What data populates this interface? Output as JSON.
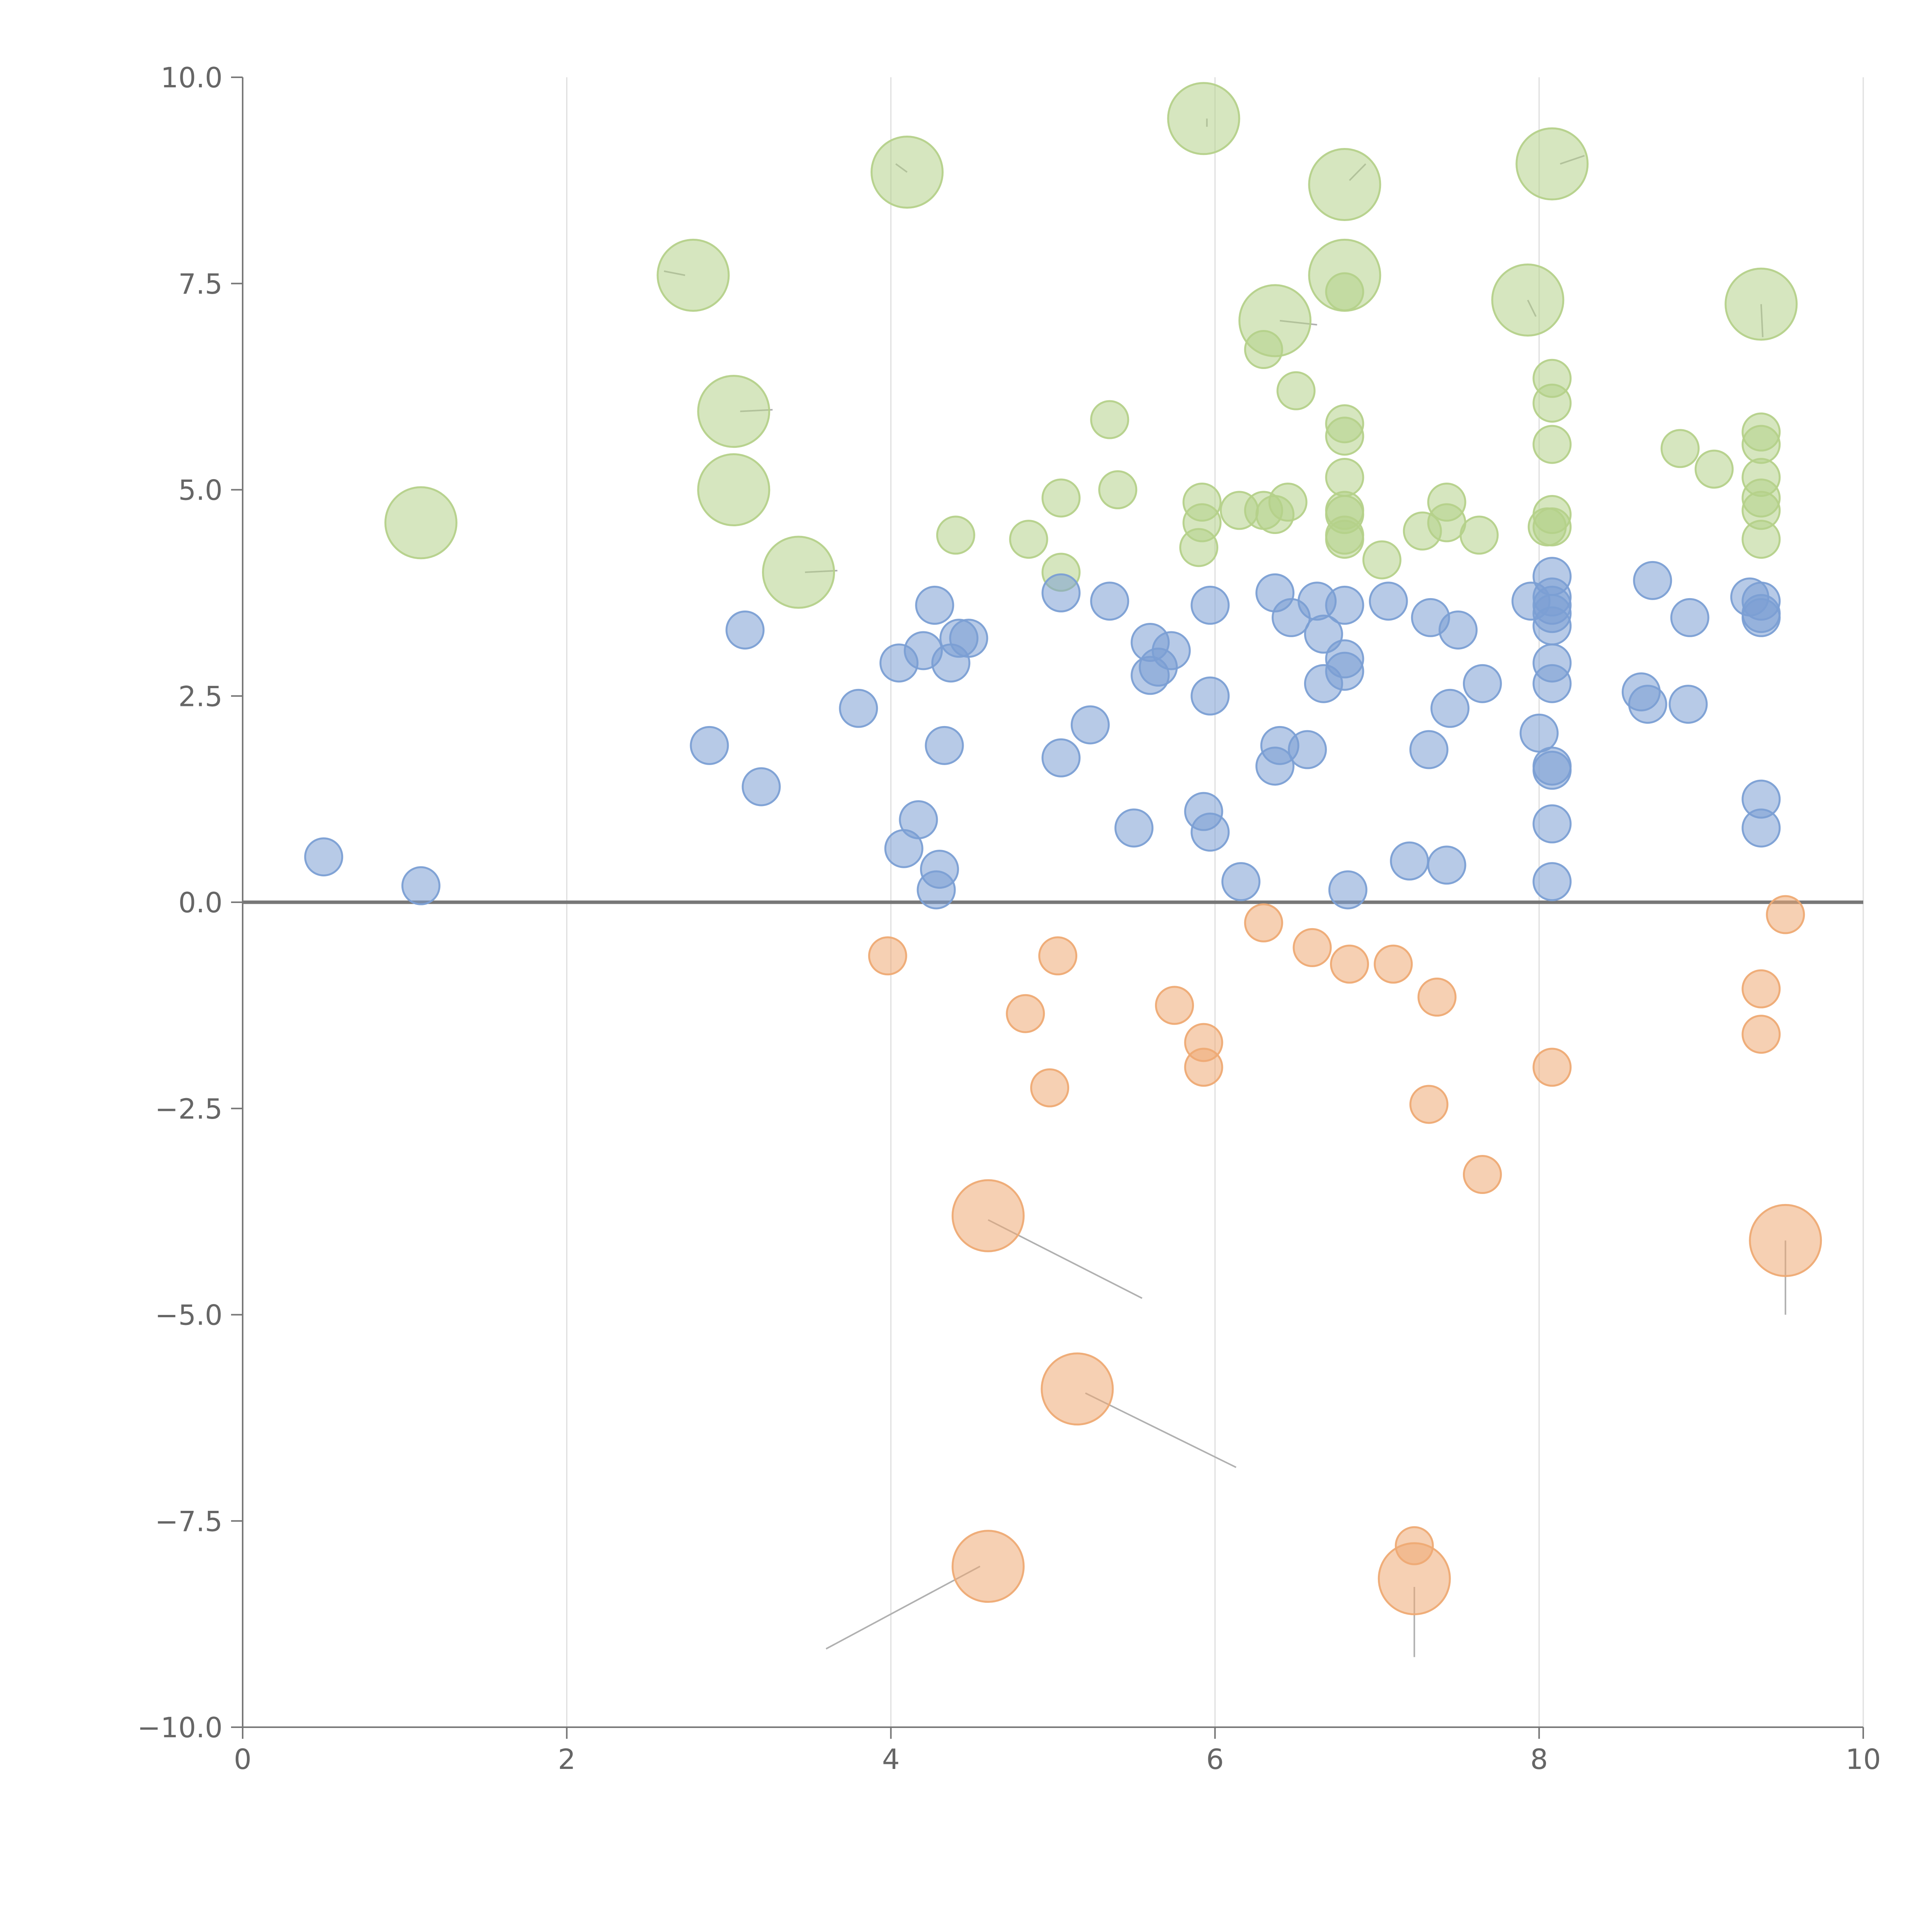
{
  "chart_data": {
    "type": "scatter",
    "title": "",
    "xlabel": "",
    "ylabel": "",
    "xlim": [
      0,
      10
    ],
    "ylim": [
      -10,
      10
    ],
    "grid": {
      "x": true,
      "y": false
    },
    "x_ticks": [
      "0",
      "2",
      "4",
      "6",
      "8",
      "10"
    ],
    "x_tick_values": [
      0,
      2,
      4,
      6,
      8,
      10
    ],
    "y_ticks": [
      "10.0",
      "7.5",
      "5.0",
      "2.5",
      "0.0",
      "−2.5",
      "−5.0",
      "−7.5",
      "−10.0"
    ],
    "y_tick_values": [
      10,
      7.5,
      5,
      2.5,
      0,
      -2.5,
      -5,
      -7.5,
      -10
    ],
    "baseline_y": 0,
    "colors": {
      "green": "#b5d18a",
      "blue": "#7b9fd4",
      "orange": "#eeaa74",
      "axis": "#777777",
      "grid": "#dedede",
      "leader": "#b0b0b0"
    },
    "series": [
      {
        "name": "green",
        "color": "#b5d18a",
        "size": "small",
        "points": [
          [
            4.4,
            4.45
          ],
          [
            4.85,
            4.4
          ],
          [
            5.05,
            4.9
          ],
          [
            5.05,
            4.0
          ],
          [
            5.35,
            5.85
          ],
          [
            5.4,
            5.0
          ],
          [
            5.92,
            4.85
          ],
          [
            5.92,
            4.6
          ],
          [
            5.9,
            4.3
          ],
          [
            6.15,
            4.75
          ],
          [
            6.3,
            4.75
          ],
          [
            6.37,
            4.7
          ],
          [
            6.45,
            4.85
          ],
          [
            6.3,
            6.7
          ],
          [
            6.5,
            6.2
          ],
          [
            6.8,
            5.8
          ],
          [
            6.8,
            5.65
          ],
          [
            6.8,
            5.15
          ],
          [
            6.8,
            4.75
          ],
          [
            6.8,
            4.7
          ],
          [
            6.8,
            4.4
          ],
          [
            6.8,
            4.45
          ],
          [
            6.8,
            7.4
          ],
          [
            7.03,
            4.15
          ],
          [
            7.28,
            4.5
          ],
          [
            7.43,
            4.85
          ],
          [
            7.43,
            4.6
          ],
          [
            7.63,
            4.45
          ],
          [
            8.05,
            4.55
          ],
          [
            8.08,
            4.7
          ],
          [
            8.08,
            4.55
          ],
          [
            8.08,
            5.55
          ],
          [
            8.08,
            6.05
          ],
          [
            8.08,
            6.35
          ],
          [
            8.87,
            5.5
          ],
          [
            9.08,
            5.25
          ],
          [
            9.37,
            5.7
          ],
          [
            9.37,
            5.55
          ],
          [
            9.37,
            5.15
          ],
          [
            9.37,
            4.9
          ],
          [
            9.37,
            4.75
          ],
          [
            9.37,
            4.4
          ]
        ]
      },
      {
        "name": "green-large",
        "color": "#b5d18a",
        "size": "large",
        "points": [
          [
            1.1,
            4.6
          ],
          [
            2.78,
            7.6
          ],
          [
            3.03,
            5.95
          ],
          [
            3.03,
            5.0
          ],
          [
            3.43,
            4.0
          ],
          [
            4.1,
            8.85
          ],
          [
            5.93,
            9.5
          ],
          [
            6.8,
            8.7
          ],
          [
            6.8,
            7.6
          ],
          [
            6.37,
            7.05
          ],
          [
            7.93,
            7.3
          ],
          [
            8.08,
            8.95
          ],
          [
            9.37,
            7.25
          ]
        ]
      },
      {
        "name": "blue",
        "color": "#7b9fd4",
        "size": "small",
        "points": [
          [
            0.5,
            0.55
          ],
          [
            1.1,
            0.2
          ],
          [
            2.88,
            1.9
          ],
          [
            3.1,
            3.3
          ],
          [
            3.2,
            1.4
          ],
          [
            3.8,
            2.35
          ],
          [
            4.05,
            2.9
          ],
          [
            4.08,
            0.65
          ],
          [
            4.17,
            1.0
          ],
          [
            4.2,
            3.05
          ],
          [
            4.27,
            3.6
          ],
          [
            4.3,
            0.4
          ],
          [
            4.28,
            0.15
          ],
          [
            4.33,
            1.9
          ],
          [
            4.37,
            2.9
          ],
          [
            4.42,
            3.2
          ],
          [
            4.48,
            3.2
          ],
          [
            5.05,
            3.75
          ],
          [
            5.05,
            1.75
          ],
          [
            5.23,
            2.15
          ],
          [
            5.35,
            3.65
          ],
          [
            5.5,
            0.9
          ],
          [
            5.6,
            3.15
          ],
          [
            5.6,
            2.75
          ],
          [
            5.65,
            2.85
          ],
          [
            5.73,
            3.05
          ],
          [
            5.93,
            1.1
          ],
          [
            5.97,
            0.85
          ],
          [
            5.97,
            3.6
          ],
          [
            5.97,
            2.5
          ],
          [
            6.16,
            0.25
          ],
          [
            6.37,
            3.75
          ],
          [
            6.37,
            1.65
          ],
          [
            6.4,
            1.9
          ],
          [
            6.47,
            3.45
          ],
          [
            6.57,
            1.85
          ],
          [
            6.63,
            3.65
          ],
          [
            6.67,
            3.25
          ],
          [
            6.67,
            2.65
          ],
          [
            6.8,
            3.6
          ],
          [
            6.8,
            2.95
          ],
          [
            6.8,
            2.8
          ],
          [
            6.82,
            0.15
          ],
          [
            7.07,
            3.65
          ],
          [
            7.2,
            0.5
          ],
          [
            7.32,
            1.85
          ],
          [
            7.33,
            3.45
          ],
          [
            7.43,
            0.45
          ],
          [
            7.45,
            2.35
          ],
          [
            7.5,
            3.3
          ],
          [
            7.65,
            2.65
          ],
          [
            8.0,
            2.05
          ],
          [
            7.95,
            3.65
          ],
          [
            8.08,
            3.95
          ],
          [
            8.08,
            3.7
          ],
          [
            8.08,
            3.6
          ],
          [
            8.08,
            3.5
          ],
          [
            8.08,
            3.35
          ],
          [
            8.08,
            2.9
          ],
          [
            8.08,
            2.65
          ],
          [
            8.08,
            1.65
          ],
          [
            8.08,
            1.6
          ],
          [
            8.08,
            0.95
          ],
          [
            8.08,
            0.25
          ],
          [
            8.63,
            2.55
          ],
          [
            8.67,
            2.4
          ],
          [
            8.7,
            3.9
          ],
          [
            8.92,
            2.4
          ],
          [
            8.93,
            3.45
          ],
          [
            9.3,
            3.7
          ],
          [
            9.37,
            3.65
          ],
          [
            9.37,
            3.5
          ],
          [
            9.37,
            3.45
          ],
          [
            9.37,
            1.25
          ],
          [
            9.37,
            0.9
          ]
        ]
      },
      {
        "name": "orange",
        "color": "#eeaa74",
        "size": "small",
        "points": [
          [
            3.98,
            -0.65
          ],
          [
            4.83,
            -1.35
          ],
          [
            4.98,
            -2.25
          ],
          [
            5.03,
            -0.65
          ],
          [
            5.75,
            -1.25
          ],
          [
            5.93,
            -1.7
          ],
          [
            5.93,
            -2.0
          ],
          [
            6.3,
            -0.25
          ],
          [
            6.6,
            -0.55
          ],
          [
            6.83,
            -0.75
          ],
          [
            7.1,
            -0.75
          ],
          [
            7.23,
            -7.8
          ],
          [
            7.32,
            -2.45
          ],
          [
            7.37,
            -1.15
          ],
          [
            7.65,
            -3.3
          ],
          [
            8.08,
            -2.0
          ],
          [
            9.37,
            -1.05
          ],
          [
            9.37,
            -1.6
          ],
          [
            9.52,
            -0.15
          ]
        ]
      },
      {
        "name": "orange-large",
        "color": "#eeaa74",
        "size": "large",
        "points": [
          [
            4.6,
            -3.8
          ],
          [
            5.15,
            -5.9
          ],
          [
            4.6,
            -8.05
          ],
          [
            7.23,
            -8.2
          ],
          [
            9.52,
            -4.1
          ]
        ]
      }
    ],
    "leader_lines": [
      [
        [
          4.6,
          -3.85
        ],
        [
          5.55,
          -4.8
        ]
      ],
      [
        [
          5.2,
          -5.95
        ],
        [
          6.13,
          -6.85
        ]
      ],
      [
        [
          4.55,
          -8.05
        ],
        [
          3.6,
          -9.05
        ]
      ],
      [
        [
          7.23,
          -8.3
        ],
        [
          7.23,
          -9.15
        ]
      ],
      [
        [
          9.52,
          -4.1
        ],
        [
          9.52,
          -5.0
        ]
      ],
      [
        [
          4.1,
          8.85
        ],
        [
          4.03,
          8.95
        ]
      ],
      [
        [
          5.95,
          9.5
        ],
        [
          5.95,
          9.4
        ]
      ],
      [
        [
          6.83,
          8.75
        ],
        [
          6.93,
          8.95
        ]
      ],
      [
        [
          8.13,
          8.95
        ],
        [
          8.28,
          9.05
        ]
      ],
      [
        [
          2.73,
          7.6
        ],
        [
          2.6,
          7.65
        ]
      ],
      [
        [
          6.4,
          7.05
        ],
        [
          6.63,
          7.0
        ]
      ],
      [
        [
          7.93,
          7.3
        ],
        [
          7.98,
          7.1
        ]
      ],
      [
        [
          9.37,
          7.25
        ],
        [
          9.38,
          6.85
        ]
      ],
      [
        [
          3.07,
          5.95
        ],
        [
          3.27,
          5.97
        ]
      ],
      [
        [
          3.47,
          4.0
        ],
        [
          3.67,
          4.02
        ]
      ]
    ]
  }
}
